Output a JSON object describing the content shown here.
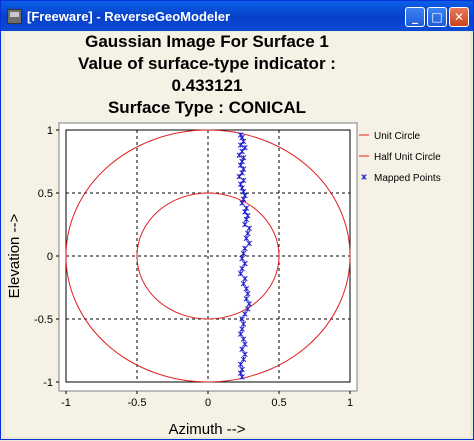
{
  "window": {
    "title": "[Freeware] - ReverseGeoModeler",
    "buttons": {
      "minimize": "_",
      "maximize": "□",
      "close": "✕"
    }
  },
  "chart_data": {
    "type": "scatter",
    "title_lines": [
      "Gaussian Image For Surface 1",
      "Value of surface-type indicator :",
      "0.433121",
      "Surface Type : CONICAL"
    ],
    "xlabel": "Azimuth -->",
    "ylabel": "Elevation -->",
    "xlim": [
      -1,
      1
    ],
    "ylim": [
      -1,
      1
    ],
    "xticks": [
      "-1",
      "-0.5",
      "0",
      "0.5",
      "1"
    ],
    "yticks": [
      "1",
      "0.5",
      "0",
      "-0.5",
      "-1"
    ],
    "grid": true,
    "legend_position": "right",
    "series": [
      {
        "name": "Unit Circle",
        "kind": "circle",
        "radius": 1.0,
        "color": "#e02020"
      },
      {
        "name": "Half Unit Circle",
        "kind": "circle",
        "radius": 0.5,
        "color": "#e02020"
      },
      {
        "name": "Mapped Points",
        "kind": "points",
        "marker": "x",
        "color": "#2020d0",
        "points": [
          [
            0.23,
            0.96
          ],
          [
            0.24,
            0.94
          ],
          [
            0.25,
            0.91
          ],
          [
            0.23,
            0.88
          ],
          [
            0.26,
            0.86
          ],
          [
            0.24,
            0.83
          ],
          [
            0.22,
            0.8
          ],
          [
            0.25,
            0.78
          ],
          [
            0.24,
            0.75
          ],
          [
            0.23,
            0.72
          ],
          [
            0.25,
            0.69
          ],
          [
            0.24,
            0.66
          ],
          [
            0.22,
            0.63
          ],
          [
            0.25,
            0.6
          ],
          [
            0.23,
            0.57
          ],
          [
            0.24,
            0.54
          ],
          [
            0.25,
            0.51
          ],
          [
            0.26,
            0.48
          ],
          [
            0.25,
            0.45
          ],
          [
            0.24,
            0.42
          ],
          [
            0.27,
            0.38
          ],
          [
            0.26,
            0.35
          ],
          [
            0.28,
            0.32
          ],
          [
            0.27,
            0.29
          ],
          [
            0.26,
            0.25
          ],
          [
            0.29,
            0.22
          ],
          [
            0.28,
            0.18
          ],
          [
            0.27,
            0.14
          ],
          [
            0.29,
            0.1
          ],
          [
            0.26,
            0.06
          ],
          [
            0.25,
            0.02
          ],
          [
            0.24,
            -0.02
          ],
          [
            0.26,
            -0.06
          ],
          [
            0.24,
            -0.1
          ],
          [
            0.23,
            -0.14
          ],
          [
            0.26,
            -0.18
          ],
          [
            0.25,
            -0.22
          ],
          [
            0.27,
            -0.26
          ],
          [
            0.28,
            -0.3
          ],
          [
            0.27,
            -0.34
          ],
          [
            0.29,
            -0.38
          ],
          [
            0.28,
            -0.42
          ],
          [
            0.26,
            -0.46
          ],
          [
            0.24,
            -0.5
          ],
          [
            0.25,
            -0.54
          ],
          [
            0.24,
            -0.58
          ],
          [
            0.23,
            -0.62
          ],
          [
            0.25,
            -0.66
          ],
          [
            0.26,
            -0.7
          ],
          [
            0.24,
            -0.74
          ],
          [
            0.26,
            -0.78
          ],
          [
            0.25,
            -0.82
          ],
          [
            0.23,
            -0.86
          ],
          [
            0.24,
            -0.9
          ],
          [
            0.23,
            -0.93
          ],
          [
            0.24,
            -0.96
          ]
        ]
      }
    ]
  }
}
